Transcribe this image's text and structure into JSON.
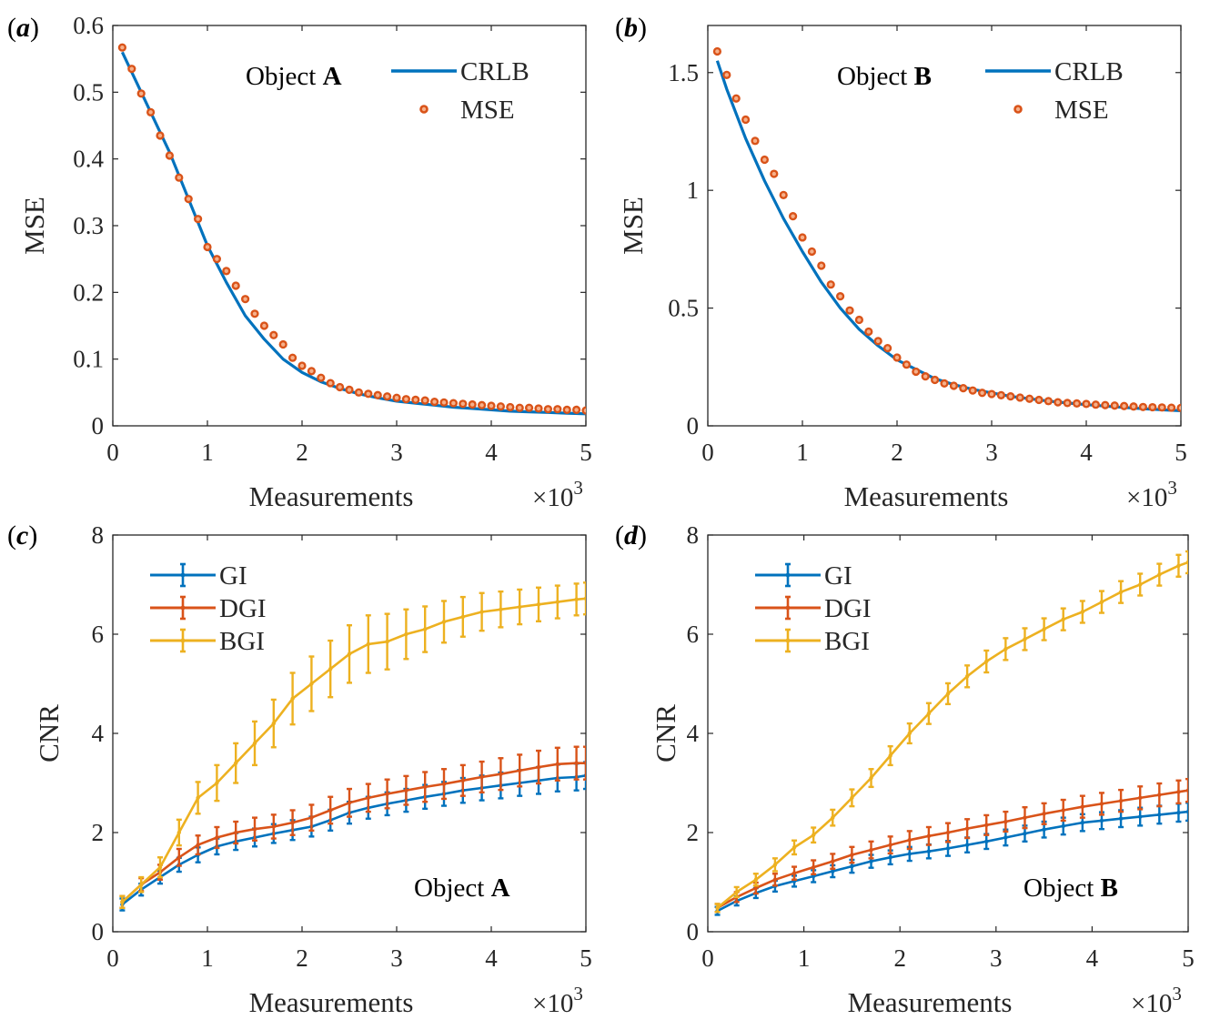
{
  "figure": {
    "description_free": true
  },
  "chart_data": [
    {
      "type": "line",
      "panel": "(a)",
      "panel_letter": "a",
      "annotation": {
        "prefix": "Object ",
        "bold": "A"
      },
      "xlabel": "Measurements",
      "x_multiplier": {
        "base": "×10",
        "exp": "3"
      },
      "ylabel": "MSE",
      "xlim": [
        0,
        5
      ],
      "ylim": [
        0,
        0.6
      ],
      "xticks": [
        "0",
        "1",
        "2",
        "3",
        "4",
        "5"
      ],
      "yticks": [
        "0",
        "0.1",
        "0.2",
        "0.3",
        "0.4",
        "0.5",
        "0.6"
      ],
      "ytick_values": [
        0,
        0.1,
        0.2,
        0.3,
        0.4,
        0.5,
        0.6
      ],
      "legend": [
        "CRLB",
        "MSE"
      ],
      "series": [
        {
          "name": "CRLB",
          "style": "line",
          "color": "#0072BD",
          "x": [
            0.1,
            0.2,
            0.4,
            0.6,
            0.8,
            1.0,
            1.2,
            1.4,
            1.6,
            1.8,
            2.0,
            2.2,
            2.4,
            2.6,
            2.8,
            3.0,
            3.2,
            3.4,
            3.6,
            3.8,
            4.0,
            4.2,
            4.4,
            4.6,
            4.8,
            5.0
          ],
          "y": [
            0.56,
            0.53,
            0.47,
            0.41,
            0.34,
            0.27,
            0.215,
            0.165,
            0.13,
            0.1,
            0.08,
            0.066,
            0.056,
            0.048,
            0.042,
            0.037,
            0.034,
            0.031,
            0.028,
            0.026,
            0.024,
            0.022,
            0.021,
            0.02,
            0.019,
            0.018
          ]
        },
        {
          "name": "MSE",
          "style": "marker",
          "color": "#D95319",
          "x": [
            0.1,
            0.2,
            0.3,
            0.4,
            0.5,
            0.6,
            0.7,
            0.8,
            0.9,
            1.0,
            1.1,
            1.2,
            1.3,
            1.4,
            1.5,
            1.6,
            1.7,
            1.8,
            1.9,
            2.0,
            2.1,
            2.2,
            2.3,
            2.4,
            2.5,
            2.6,
            2.7,
            2.8,
            2.9,
            3.0,
            3.1,
            3.2,
            3.3,
            3.4,
            3.5,
            3.6,
            3.7,
            3.8,
            3.9,
            4.0,
            4.1,
            4.2,
            4.3,
            4.4,
            4.5,
            4.6,
            4.7,
            4.8,
            4.9,
            5.0
          ],
          "y": [
            0.567,
            0.535,
            0.498,
            0.47,
            0.435,
            0.405,
            0.372,
            0.34,
            0.31,
            0.268,
            0.25,
            0.232,
            0.21,
            0.19,
            0.168,
            0.15,
            0.136,
            0.122,
            0.102,
            0.09,
            0.082,
            0.072,
            0.064,
            0.058,
            0.054,
            0.05,
            0.048,
            0.046,
            0.044,
            0.042,
            0.04,
            0.039,
            0.038,
            0.036,
            0.035,
            0.034,
            0.033,
            0.032,
            0.031,
            0.03,
            0.029,
            0.028,
            0.027,
            0.027,
            0.026,
            0.025,
            0.025,
            0.024,
            0.024,
            0.023
          ]
        }
      ]
    },
    {
      "type": "line",
      "panel": "(b)",
      "panel_letter": "b",
      "annotation": {
        "prefix": "Object ",
        "bold": "B"
      },
      "xlabel": "Measurements",
      "x_multiplier": {
        "base": "×10",
        "exp": "3"
      },
      "ylabel": "MSE",
      "xlim": [
        0,
        5
      ],
      "ylim": [
        0,
        1.7
      ],
      "xticks": [
        "0",
        "1",
        "2",
        "3",
        "4",
        "5"
      ],
      "yticks": [
        "0",
        "0.5",
        "1",
        "1.5"
      ],
      "ytick_values": [
        0,
        0.5,
        1,
        1.5
      ],
      "legend": [
        "CRLB",
        "MSE"
      ],
      "series": [
        {
          "name": "CRLB",
          "style": "line",
          "color": "#0072BD",
          "x": [
            0.1,
            0.2,
            0.4,
            0.6,
            0.8,
            1.0,
            1.2,
            1.4,
            1.6,
            1.8,
            2.0,
            2.2,
            2.4,
            2.6,
            2.8,
            3.0,
            3.2,
            3.4,
            3.6,
            3.8,
            4.0,
            4.2,
            4.4,
            4.6,
            4.8,
            5.0
          ],
          "y": [
            1.55,
            1.43,
            1.22,
            1.04,
            0.88,
            0.74,
            0.61,
            0.5,
            0.41,
            0.34,
            0.28,
            0.24,
            0.2,
            0.175,
            0.155,
            0.14,
            0.125,
            0.115,
            0.105,
            0.097,
            0.09,
            0.084,
            0.078,
            0.073,
            0.068,
            0.064
          ]
        },
        {
          "name": "MSE",
          "style": "marker",
          "color": "#D95319",
          "x": [
            0.1,
            0.2,
            0.3,
            0.4,
            0.5,
            0.6,
            0.7,
            0.8,
            0.9,
            1.0,
            1.1,
            1.2,
            1.3,
            1.4,
            1.5,
            1.6,
            1.7,
            1.8,
            1.9,
            2.0,
            2.1,
            2.2,
            2.3,
            2.4,
            2.5,
            2.6,
            2.7,
            2.8,
            2.9,
            3.0,
            3.1,
            3.2,
            3.3,
            3.4,
            3.5,
            3.6,
            3.7,
            3.8,
            3.9,
            4.0,
            4.1,
            4.2,
            4.3,
            4.4,
            4.5,
            4.6,
            4.7,
            4.8,
            4.9,
            5.0
          ],
          "y": [
            1.59,
            1.49,
            1.39,
            1.3,
            1.21,
            1.13,
            1.07,
            0.98,
            0.89,
            0.8,
            0.74,
            0.68,
            0.6,
            0.55,
            0.49,
            0.45,
            0.4,
            0.36,
            0.33,
            0.29,
            0.26,
            0.23,
            0.21,
            0.195,
            0.18,
            0.17,
            0.16,
            0.15,
            0.14,
            0.135,
            0.13,
            0.125,
            0.12,
            0.115,
            0.11,
            0.105,
            0.1,
            0.097,
            0.095,
            0.093,
            0.09,
            0.088,
            0.086,
            0.084,
            0.082,
            0.08,
            0.079,
            0.078,
            0.077,
            0.076
          ]
        }
      ]
    },
    {
      "type": "line",
      "panel": "(c)",
      "panel_letter": "c",
      "annotation": {
        "prefix": "Object ",
        "bold": "A"
      },
      "xlabel": "Measurements",
      "x_multiplier": {
        "base": "×10",
        "exp": "3"
      },
      "ylabel": "CNR",
      "xlim": [
        0,
        5
      ],
      "ylim": [
        0,
        8
      ],
      "xticks": [
        "0",
        "1",
        "2",
        "3",
        "4",
        "5"
      ],
      "yticks": [
        "0",
        "2",
        "4",
        "6",
        "8"
      ],
      "ytick_values": [
        0,
        2,
        4,
        6,
        8
      ],
      "legend": [
        "GI",
        "DGI",
        "BGI"
      ],
      "series": [
        {
          "name": "GI",
          "style": "errorbar",
          "color": "#0072BD",
          "x": [
            0.1,
            0.3,
            0.5,
            0.7,
            0.9,
            1.1,
            1.3,
            1.5,
            1.7,
            1.9,
            2.1,
            2.3,
            2.5,
            2.7,
            2.9,
            3.1,
            3.3,
            3.5,
            3.7,
            3.9,
            4.1,
            4.3,
            4.5,
            4.7,
            4.9,
            5.0
          ],
          "y": [
            0.55,
            0.85,
            1.1,
            1.35,
            1.55,
            1.72,
            1.82,
            1.9,
            1.98,
            2.05,
            2.12,
            2.25,
            2.4,
            2.5,
            2.58,
            2.65,
            2.72,
            2.78,
            2.85,
            2.9,
            2.95,
            3.0,
            3.05,
            3.1,
            3.12,
            3.15
          ],
          "err": [
            0.12,
            0.12,
            0.13,
            0.14,
            0.15,
            0.16,
            0.17,
            0.18,
            0.19,
            0.2,
            0.2,
            0.21,
            0.22,
            0.22,
            0.23,
            0.23,
            0.24,
            0.24,
            0.25,
            0.25,
            0.26,
            0.26,
            0.27,
            0.27,
            0.27,
            0.27
          ]
        },
        {
          "name": "DGI",
          "style": "errorbar",
          "color": "#D95319",
          "x": [
            0.1,
            0.3,
            0.5,
            0.7,
            0.9,
            1.1,
            1.3,
            1.5,
            1.7,
            1.9,
            2.1,
            2.3,
            2.5,
            2.7,
            2.9,
            3.1,
            3.3,
            3.5,
            3.7,
            3.9,
            4.1,
            4.3,
            4.5,
            4.7,
            4.9,
            5.0
          ],
          "y": [
            0.6,
            0.95,
            1.2,
            1.5,
            1.75,
            1.9,
            2.0,
            2.07,
            2.12,
            2.2,
            2.3,
            2.45,
            2.6,
            2.7,
            2.78,
            2.85,
            2.92,
            2.98,
            3.05,
            3.12,
            3.18,
            3.25,
            3.32,
            3.38,
            3.4,
            3.4
          ],
          "err": [
            0.12,
            0.13,
            0.15,
            0.17,
            0.19,
            0.21,
            0.22,
            0.23,
            0.24,
            0.25,
            0.26,
            0.27,
            0.28,
            0.28,
            0.29,
            0.29,
            0.3,
            0.3,
            0.31,
            0.31,
            0.32,
            0.32,
            0.33,
            0.33,
            0.33,
            0.33
          ]
        },
        {
          "name": "BGI",
          "style": "errorbar",
          "color": "#EDB120",
          "x": [
            0.1,
            0.3,
            0.5,
            0.7,
            0.9,
            1.1,
            1.3,
            1.5,
            1.7,
            1.9,
            2.1,
            2.3,
            2.5,
            2.7,
            2.9,
            3.1,
            3.3,
            3.5,
            3.7,
            3.9,
            4.1,
            4.3,
            4.5,
            4.7,
            4.9,
            5.0
          ],
          "y": [
            0.6,
            0.95,
            1.3,
            2.0,
            2.7,
            3.0,
            3.4,
            3.8,
            4.2,
            4.7,
            5.0,
            5.3,
            5.6,
            5.8,
            5.85,
            6.0,
            6.1,
            6.25,
            6.35,
            6.45,
            6.5,
            6.55,
            6.6,
            6.65,
            6.7,
            6.72
          ],
          "err": [
            0.12,
            0.15,
            0.2,
            0.26,
            0.32,
            0.36,
            0.4,
            0.44,
            0.48,
            0.52,
            0.55,
            0.57,
            0.58,
            0.58,
            0.56,
            0.5,
            0.46,
            0.42,
            0.4,
            0.38,
            0.36,
            0.35,
            0.34,
            0.33,
            0.32,
            0.32
          ]
        }
      ]
    },
    {
      "type": "line",
      "panel": "(d)",
      "panel_letter": "d",
      "annotation": {
        "prefix": "Object ",
        "bold": "B"
      },
      "xlabel": "Measurements",
      "x_multiplier": {
        "base": "×10",
        "exp": "3"
      },
      "ylabel": "CNR",
      "xlim": [
        0,
        5
      ],
      "ylim": [
        0,
        8
      ],
      "xticks": [
        "0",
        "1",
        "2",
        "3",
        "4",
        "5"
      ],
      "yticks": [
        "0",
        "2",
        "4",
        "6",
        "8"
      ],
      "ytick_values": [
        0,
        2,
        4,
        6,
        8
      ],
      "legend": [
        "GI",
        "DGI",
        "BGI"
      ],
      "series": [
        {
          "name": "GI",
          "style": "errorbar",
          "color": "#0072BD",
          "x": [
            0.1,
            0.3,
            0.5,
            0.7,
            0.9,
            1.1,
            1.3,
            1.5,
            1.7,
            1.9,
            2.1,
            2.3,
            2.5,
            2.7,
            2.9,
            3.1,
            3.3,
            3.5,
            3.7,
            3.9,
            4.1,
            4.3,
            4.5,
            4.7,
            4.9,
            5.0
          ],
          "y": [
            0.42,
            0.62,
            0.78,
            0.92,
            1.02,
            1.12,
            1.22,
            1.32,
            1.42,
            1.5,
            1.57,
            1.62,
            1.68,
            1.75,
            1.82,
            1.9,
            1.98,
            2.06,
            2.13,
            2.2,
            2.24,
            2.28,
            2.32,
            2.36,
            2.4,
            2.42
          ],
          "err": [
            0.08,
            0.09,
            0.1,
            0.11,
            0.11,
            0.12,
            0.12,
            0.13,
            0.13,
            0.14,
            0.14,
            0.14,
            0.15,
            0.15,
            0.15,
            0.16,
            0.16,
            0.16,
            0.17,
            0.17,
            0.17,
            0.17,
            0.18,
            0.18,
            0.18,
            0.18
          ]
        },
        {
          "name": "DGI",
          "style": "errorbar",
          "color": "#D95319",
          "x": [
            0.1,
            0.3,
            0.5,
            0.7,
            0.9,
            1.1,
            1.3,
            1.5,
            1.7,
            1.9,
            2.1,
            2.3,
            2.5,
            2.7,
            2.9,
            3.1,
            3.3,
            3.5,
            3.7,
            3.9,
            4.1,
            4.3,
            4.5,
            4.7,
            4.9,
            5.0
          ],
          "y": [
            0.48,
            0.7,
            0.88,
            1.05,
            1.18,
            1.3,
            1.42,
            1.55,
            1.65,
            1.75,
            1.85,
            1.93,
            2.0,
            2.08,
            2.15,
            2.22,
            2.3,
            2.38,
            2.45,
            2.52,
            2.58,
            2.64,
            2.7,
            2.76,
            2.82,
            2.85
          ],
          "err": [
            0.08,
            0.1,
            0.11,
            0.12,
            0.13,
            0.14,
            0.15,
            0.16,
            0.17,
            0.17,
            0.18,
            0.18,
            0.19,
            0.19,
            0.2,
            0.2,
            0.21,
            0.21,
            0.21,
            0.22,
            0.22,
            0.22,
            0.23,
            0.23,
            0.23,
            0.23
          ]
        },
        {
          "name": "BGI",
          "style": "errorbar",
          "color": "#EDB120",
          "x": [
            0.1,
            0.3,
            0.5,
            0.7,
            0.9,
            1.1,
            1.3,
            1.5,
            1.7,
            1.9,
            2.1,
            2.3,
            2.5,
            2.7,
            2.9,
            3.1,
            3.3,
            3.5,
            3.7,
            3.9,
            4.1,
            4.3,
            4.5,
            4.7,
            4.9,
            5.0
          ],
          "y": [
            0.48,
            0.8,
            1.05,
            1.35,
            1.7,
            1.95,
            2.3,
            2.7,
            3.1,
            3.55,
            4.0,
            4.4,
            4.8,
            5.15,
            5.45,
            5.7,
            5.9,
            6.1,
            6.3,
            6.45,
            6.65,
            6.85,
            7.0,
            7.2,
            7.38,
            7.45
          ],
          "err": [
            0.08,
            0.1,
            0.12,
            0.13,
            0.14,
            0.15,
            0.16,
            0.17,
            0.18,
            0.19,
            0.2,
            0.21,
            0.21,
            0.22,
            0.22,
            0.22,
            0.22,
            0.22,
            0.22,
            0.22,
            0.22,
            0.22,
            0.22,
            0.22,
            0.22,
            0.22
          ]
        }
      ]
    }
  ]
}
